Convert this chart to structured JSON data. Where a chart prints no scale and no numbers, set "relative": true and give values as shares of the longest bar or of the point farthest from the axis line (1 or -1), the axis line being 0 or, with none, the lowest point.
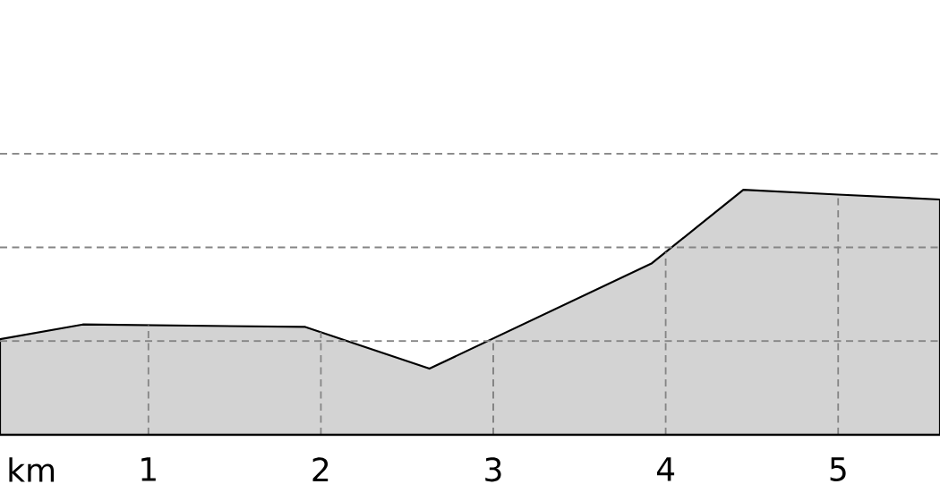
{
  "chart_data": {
    "type": "area",
    "xlabel": "km",
    "x": [
      0.14,
      0.62,
      1.91,
      2.63,
      3.92,
      4.45,
      5.0,
      5.59
    ],
    "values": [
      0.39,
      0.45,
      0.44,
      0.27,
      0.7,
      1,
      0.98,
      0.96
    ],
    "relative": true,
    "color": "#d3d3d3",
    "xlim": [
      0.14,
      5.59
    ],
    "xticks": [
      1,
      2,
      3,
      4,
      5
    ],
    "grid": true
  }
}
